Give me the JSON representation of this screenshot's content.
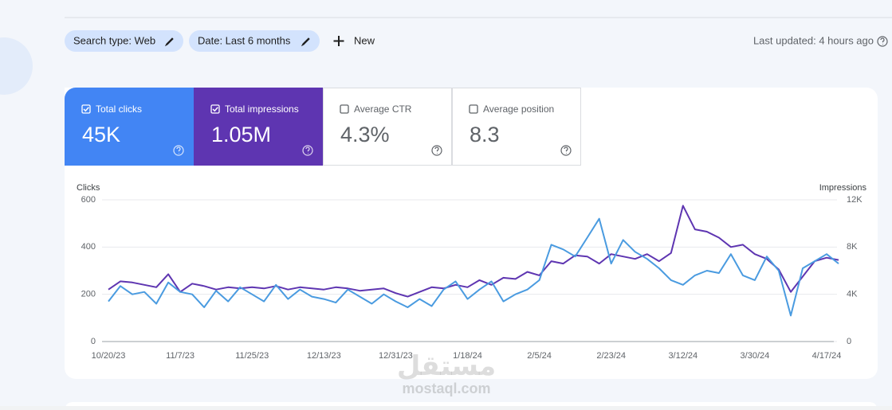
{
  "toolbar": {
    "chips": [
      "Search type: Web",
      "Date: Last 6 months"
    ],
    "new_button": "New",
    "last_updated": "Last updated: 4 hours ago"
  },
  "metrics": [
    {
      "label": "Total clicks",
      "value": "45K",
      "checked": true,
      "color": "#4285f4"
    },
    {
      "label": "Total impressions",
      "value": "1.05M",
      "checked": true,
      "color": "#5e35b1"
    },
    {
      "label": "Average CTR",
      "value": "4.3%",
      "checked": false
    },
    {
      "label": "Average position",
      "value": "8.3",
      "checked": false
    }
  ],
  "watermark": {
    "arabic": "مستقل",
    "latin": "mostaql.com"
  },
  "chart_data": {
    "type": "line",
    "y_label": "Clicks",
    "y2_label": "Impressions",
    "categories": [
      "10/20/23",
      null,
      null,
      null,
      null,
      null,
      "11/7/23",
      null,
      null,
      null,
      null,
      null,
      "11/25/23",
      null,
      null,
      null,
      null,
      null,
      "12/13/23",
      null,
      null,
      null,
      null,
      null,
      "12/31/23",
      null,
      null,
      null,
      null,
      null,
      "1/18/24",
      null,
      null,
      null,
      null,
      null,
      "2/5/24",
      null,
      null,
      null,
      null,
      null,
      "2/23/24",
      null,
      null,
      null,
      null,
      null,
      "3/12/24",
      null,
      null,
      null,
      null,
      null,
      "3/30/24",
      null,
      null,
      null,
      null,
      null,
      "4/17/24",
      null
    ],
    "ylim": [
      0,
      600
    ],
    "yticks": [
      0,
      200,
      400,
      600
    ],
    "y2lim": [
      0,
      12000
    ],
    "y2ticks": [
      0,
      {
        "value": 4000,
        "label": "4K"
      },
      {
        "value": 8000,
        "label": "8K"
      },
      {
        "value": 12000,
        "label": "12K"
      }
    ],
    "grid": true,
    "series": [
      {
        "name": "Clicks",
        "color": "#4a9be0",
        "values": [
          170,
          235,
          200,
          210,
          160,
          250,
          210,
          200,
          145,
          215,
          170,
          230,
          200,
          170,
          240,
          180,
          220,
          190,
          180,
          165,
          220,
          190,
          160,
          200,
          170,
          145,
          180,
          150,
          220,
          255,
          180,
          220,
          255,
          170,
          200,
          220,
          260,
          410,
          390,
          360,
          440,
          520,
          330,
          430,
          380,
          350,
          310,
          260,
          240,
          280,
          300,
          290,
          370,
          280,
          260,
          360,
          300,
          110,
          310,
          340,
          370,
          330
        ]
      },
      {
        "name": "Impressions",
        "color": "#5e35b1",
        "axis": "y2",
        "values": [
          4400,
          5100,
          5000,
          4800,
          4600,
          5700,
          4200,
          4900,
          4700,
          4400,
          4600,
          4500,
          4600,
          4500,
          4700,
          4400,
          4600,
          4500,
          4400,
          4600,
          4500,
          4300,
          4400,
          4500,
          4100,
          3800,
          4200,
          4600,
          4500,
          4800,
          4600,
          5200,
          4800,
          5400,
          5300,
          5900,
          5600,
          6800,
          6600,
          7300,
          7200,
          6600,
          7400,
          7200,
          7000,
          7400,
          6800,
          7500,
          11500,
          9500,
          9300,
          8800,
          8000,
          8200,
          7400,
          7000,
          6100,
          4200,
          5500,
          6800,
          7100,
          6900
        ]
      }
    ]
  }
}
